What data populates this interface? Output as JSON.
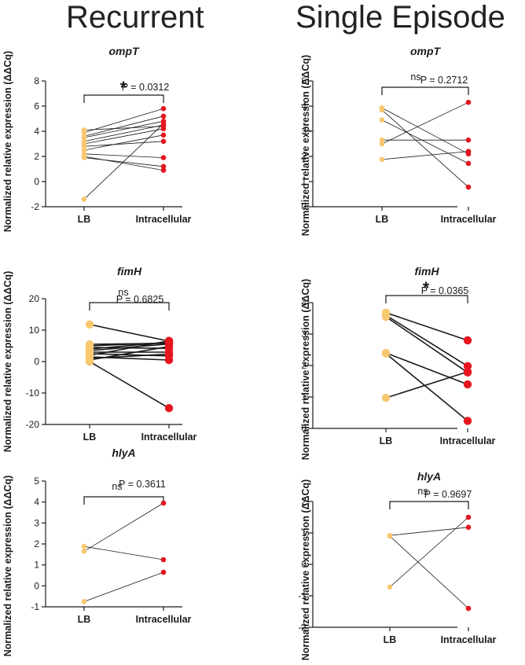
{
  "headers": {
    "left": "Recurrent",
    "right": "Single Episode"
  },
  "colors": {
    "lb": "#f7c870",
    "intracellular": "#e5161e",
    "axis": "#1a1a1a",
    "line": "#1a1a1a"
  },
  "chart_data": [
    {
      "id": "rec-ompT",
      "type": "paired-dot",
      "group": "Recurrent",
      "title": "ompT",
      "ylabel": "Normalized relative expression (ΔΔCq)",
      "categories": [
        "LB",
        "Intracellular"
      ],
      "ylim": [
        -2,
        8
      ],
      "yticks": [
        -2,
        0,
        2,
        4,
        6,
        8
      ],
      "significance": "*",
      "p_value": "P = 0.0312",
      "pairs": [
        [
          4.1,
          4.4
        ],
        [
          3.9,
          5.8
        ],
        [
          3.6,
          5.2
        ],
        [
          3.5,
          4.8
        ],
        [
          3.2,
          4.5
        ],
        [
          3.0,
          4.2
        ],
        [
          2.8,
          3.2
        ],
        [
          2.5,
          3.7
        ],
        [
          2.2,
          1.9
        ],
        [
          2.0,
          0.9
        ],
        [
          1.9,
          1.2
        ],
        [
          -1.4,
          4.6
        ]
      ],
      "line_width": 0.8,
      "dot_size": "small"
    },
    {
      "id": "se-ompT",
      "type": "paired-dot",
      "group": "Single Episode",
      "title": "ompT",
      "ylabel": "Normalized relative expression (ΔΔCq)",
      "categories": [
        "LB",
        "Intracellular"
      ],
      "ylim": [
        0,
        5
      ],
      "yticks": [
        0,
        1,
        2,
        3,
        4,
        5
      ],
      "significance": "ns",
      "p_value": "P = 0.2712",
      "pairs": [
        [
          3.93,
          2.1
        ],
        [
          3.85,
          0.78
        ],
        [
          3.45,
          1.72
        ],
        [
          2.65,
          2.65
        ],
        [
          2.5,
          4.15
        ],
        [
          1.88,
          2.2
        ]
      ],
      "line_width": 0.8,
      "dot_size": "small"
    },
    {
      "id": "rec-fimH",
      "type": "paired-dot",
      "group": "Recurrent",
      "title": "fimH",
      "ylabel": "Normalized relative expression (ΔΔCq)",
      "categories": [
        "LB",
        "Intracellular"
      ],
      "ylim": [
        -20,
        20
      ],
      "yticks": [
        -20,
        -10,
        0,
        10,
        20
      ],
      "significance": "ns",
      "p_value": "P = 0.6825",
      "pairs": [
        [
          11.8,
          6.5
        ],
        [
          5.5,
          5.8
        ],
        [
          5.0,
          6.0
        ],
        [
          4.5,
          4.2
        ],
        [
          4.0,
          6.2
        ],
        [
          3.5,
          5.6
        ],
        [
          3.0,
          3.0
        ],
        [
          2.5,
          1.8
        ],
        [
          2.0,
          6.6
        ],
        [
          1.5,
          0.5
        ],
        [
          1.0,
          2.4
        ],
        [
          0.5,
          4.8
        ]
      ],
      "line_width": 1.6,
      "dot_size": "large",
      "extra": {
        "lb": 0.0,
        "intracellular": -14.8,
        "pair": [
          0.0,
          -14.8
        ]
      }
    },
    {
      "id": "se-fimH",
      "type": "paired-dot",
      "group": "Single Episode",
      "title": "fimH",
      "ylabel": "Normalized relative expression (ΔΔCq)",
      "categories": [
        "LB",
        "Intracellular"
      ],
      "ylim": [
        0,
        4
      ],
      "yticks": [
        0,
        1,
        2,
        3,
        4
      ],
      "significance": "*",
      "p_value": "P = 0.0365",
      "pairs": [
        [
          3.68,
          2.8
        ],
        [
          3.6,
          1.98
        ],
        [
          3.55,
          1.78
        ],
        [
          2.4,
          1.4
        ],
        [
          2.38,
          0.24
        ],
        [
          0.97,
          1.8
        ]
      ],
      "line_width": 1.6,
      "dot_size": "large"
    },
    {
      "id": "rec-hlyA",
      "type": "paired-dot",
      "group": "Recurrent",
      "title": "hlyA",
      "ylabel": "Normalized relative expression (ΔΔCq)",
      "categories": [
        "LB",
        "Intracellular"
      ],
      "ylim": [
        -1,
        5
      ],
      "yticks": [
        -1,
        0,
        1,
        2,
        3,
        4,
        5
      ],
      "significance": "ns",
      "p_value": "P = 0.3611",
      "pairs": [
        [
          1.88,
          1.25
        ],
        [
          1.65,
          3.95
        ],
        [
          -0.75,
          0.65
        ]
      ],
      "line_width": 0.8,
      "dot_size": "small"
    },
    {
      "id": "se-hlyA",
      "type": "paired-dot",
      "group": "Single Episode",
      "title": "hlyA",
      "ylabel": "Normalized relative expression (ΔΔCq)",
      "categories": [
        "LB",
        "Intracellular"
      ],
      "ylim": [
        -2,
        2
      ],
      "yticks": [
        -2,
        -1,
        0,
        1,
        2
      ],
      "significance": "ns",
      "p_value": "P = 0.9697",
      "pairs": [
        [
          0.92,
          1.18
        ],
        [
          0.9,
          -1.4
        ],
        [
          -0.72,
          1.5
        ]
      ],
      "line_width": 0.8,
      "dot_size": "small"
    }
  ]
}
